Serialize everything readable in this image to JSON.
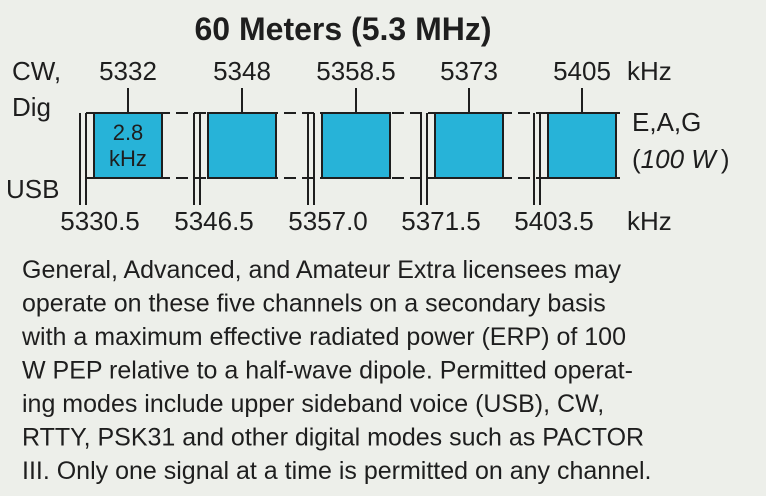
{
  "title": "60 Meters (5.3 MHz)",
  "left_labels": [
    "CW,",
    "Dig",
    "USB"
  ],
  "top_unit": "kHz",
  "bottom_unit": "kHz",
  "channels": [
    {
      "center": "5332",
      "lower": "5330.5"
    },
    {
      "center": "5348",
      "lower": "5346.5"
    },
    {
      "center": "5358.5",
      "lower": "5357.0"
    },
    {
      "center": "5373",
      "lower": "5371.5"
    },
    {
      "center": "5405",
      "lower": "5403.5"
    }
  ],
  "bandwidth_label": [
    "2.8",
    "kHz"
  ],
  "licensees": "E,A,G",
  "power": {
    "open": "(",
    "value": "100 W",
    "close": ")"
  },
  "description": [
    "General, Advanced, and Amateur Extra licensees may",
    "operate on these five channels on a secondary basis",
    "with a maximum effective radiated power (ERP) of 100",
    "W PEP relative to a half-wave dipole. Permitted operat-",
    "ing modes include upper sideband voice (USB), CW,",
    "RTTY, PSK31 and other digital modes such as PACTOR",
    "III. Only one signal at a time is permitted on any channel."
  ]
}
